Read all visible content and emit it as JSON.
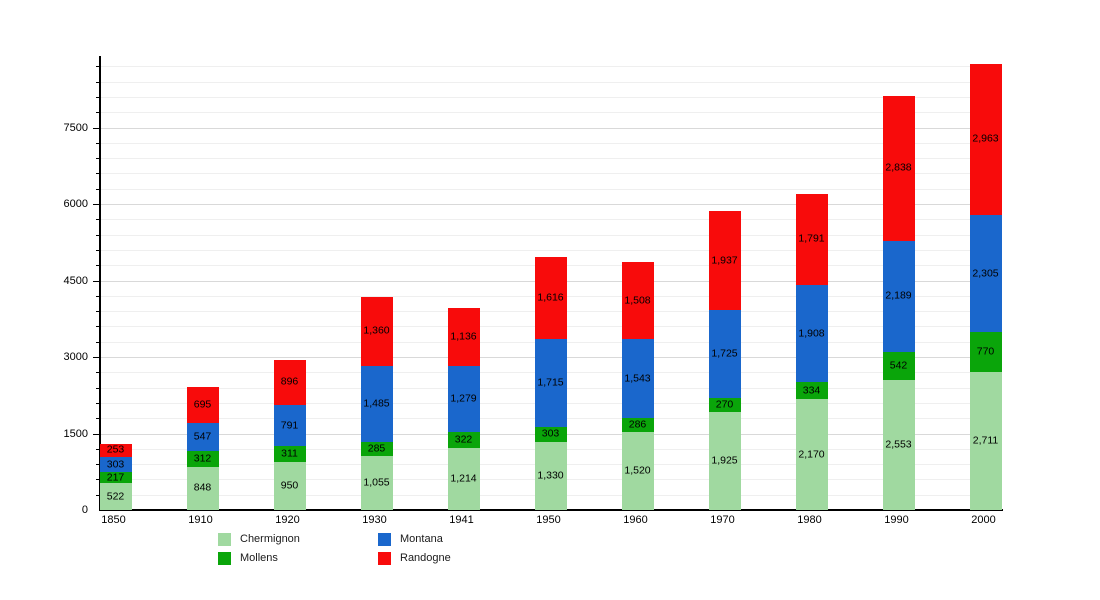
{
  "chart_data": {
    "type": "bar",
    "stacked": true,
    "title": "",
    "xlabel": "",
    "ylabel": "",
    "categories": [
      "1850",
      "1910",
      "1920",
      "1930",
      "1941",
      "1950",
      "1960",
      "1970",
      "1980",
      "1990",
      "2000"
    ],
    "series": [
      {
        "name": "Chermignon",
        "color": "#a0d9a0",
        "values": [
          522,
          848,
          950,
          1055,
          1214,
          1330,
          1520,
          1925,
          2170,
          2553,
          2711
        ]
      },
      {
        "name": "Mollens",
        "color": "#0aa50a",
        "values": [
          217,
          312,
          311,
          285,
          322,
          303,
          286,
          270,
          334,
          542,
          770
        ]
      },
      {
        "name": "Montana",
        "color": "#1a67cc",
        "values": [
          303,
          547,
          791,
          1485,
          1279,
          1715,
          1543,
          1725,
          1908,
          2189,
          2305
        ]
      },
      {
        "name": "Randogne",
        "color": "#f80b0b",
        "values": [
          253,
          695,
          896,
          1360,
          1136,
          1616,
          1508,
          1937,
          1791,
          2838,
          2963
        ]
      }
    ],
    "ylim": [
      0,
      8900
    ],
    "y_major_ticks": [
      0,
      1500,
      3000,
      4500,
      6000,
      7500
    ],
    "y_major_tick_labels": [
      "0",
      "1500",
      "3000",
      "4500",
      "6000",
      "7500"
    ],
    "y_minor_step": 300,
    "grid": true,
    "value_labels": true,
    "number_format": "thousands-comma",
    "legend_position": "bottom",
    "legend_order": [
      "Chermignon",
      "Mollens",
      "Montana",
      "Randogne"
    ],
    "axis_color": "#000000",
    "background_color": "#ffffff"
  }
}
